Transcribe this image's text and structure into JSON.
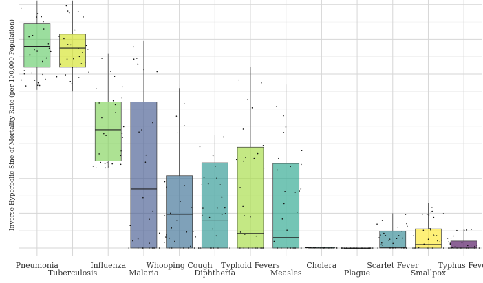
{
  "chart_data": {
    "type": "box",
    "title": "",
    "xlabel": "",
    "ylabel": "Inverse Hyperbolic Sine of Mortality Rate (per 100,000 Population)",
    "ylim": [
      -0.05,
      7.1
    ],
    "ytick_values": [
      0,
      1,
      2,
      3,
      4,
      5,
      6,
      7
    ],
    "ytick_labels_shown": false,
    "grid": true,
    "legend": "none",
    "categories": [
      "Pneumonia",
      "Tuberculosis",
      "Influenza",
      "Malaria",
      "Whooping Cough",
      "Diphtheria",
      "Typhoid Fevers",
      "Measles",
      "Cholera",
      "Plague",
      "Scarlet Fever",
      "Smallpox",
      "Typhus Fever"
    ],
    "label_rows": [
      0,
      1,
      0,
      1,
      0,
      1,
      0,
      1,
      0,
      1,
      0,
      1,
      0
    ],
    "boxes": [
      {
        "category": "Pneumonia",
        "min": 4.55,
        "q1": 5.2,
        "median": 5.8,
        "q3": 6.45,
        "max": 7.1,
        "color": "#5ec962"
      },
      {
        "category": "Tuberculosis",
        "min": 4.5,
        "q1": 5.2,
        "median": 5.75,
        "q3": 6.15,
        "max": 7.1,
        "color": "#d2e21b"
      },
      {
        "category": "Influenza",
        "min": 2.3,
        "q1": 2.5,
        "median": 3.4,
        "q3": 4.2,
        "max": 5.6,
        "color": "#7ad151"
      },
      {
        "category": "Malaria",
        "min": 0,
        "q1": 0,
        "median": 1.7,
        "q3": 4.2,
        "max": 5.95,
        "color": "#3b528b"
      },
      {
        "category": "Whooping Cough",
        "min": 0,
        "q1": 0,
        "median": 0.97,
        "q3": 2.08,
        "max": 4.6,
        "color": "#31688e"
      },
      {
        "category": "Diphtheria",
        "min": 0,
        "q1": 0,
        "median": 0.8,
        "q3": 2.45,
        "max": 3.25,
        "color": "#21918c"
      },
      {
        "category": "Typhoid Fevers",
        "min": 0,
        "q1": 0,
        "median": 0.42,
        "q3": 2.9,
        "max": 5.2,
        "color": "#a0da39"
      },
      {
        "category": "Measles",
        "min": 0,
        "q1": 0,
        "median": 0.3,
        "q3": 2.43,
        "max": 4.7,
        "color": "#1fa187"
      },
      {
        "category": "Cholera",
        "min": 0,
        "q1": 0,
        "median": 0,
        "q3": 0.02,
        "max": 0.02,
        "color": "#1f9e89"
      },
      {
        "category": "Plague",
        "min": 0,
        "q1": 0,
        "median": 0,
        "q3": 0,
        "max": 0,
        "color": "#2c728e"
      },
      {
        "category": "Scarlet Fever",
        "min": 0,
        "q1": 0,
        "median": 0.02,
        "q3": 0.48,
        "max": 1.0,
        "color": "#26828e"
      },
      {
        "category": "Smallpox",
        "min": 0,
        "q1": 0,
        "median": 0.1,
        "q3": 0.55,
        "max": 1.3,
        "color": "#fde725"
      },
      {
        "category": "Typhus Fever",
        "min": 0,
        "q1": 0,
        "median": 0,
        "q3": 0.2,
        "max": 0.55,
        "color": "#440154"
      }
    ]
  }
}
